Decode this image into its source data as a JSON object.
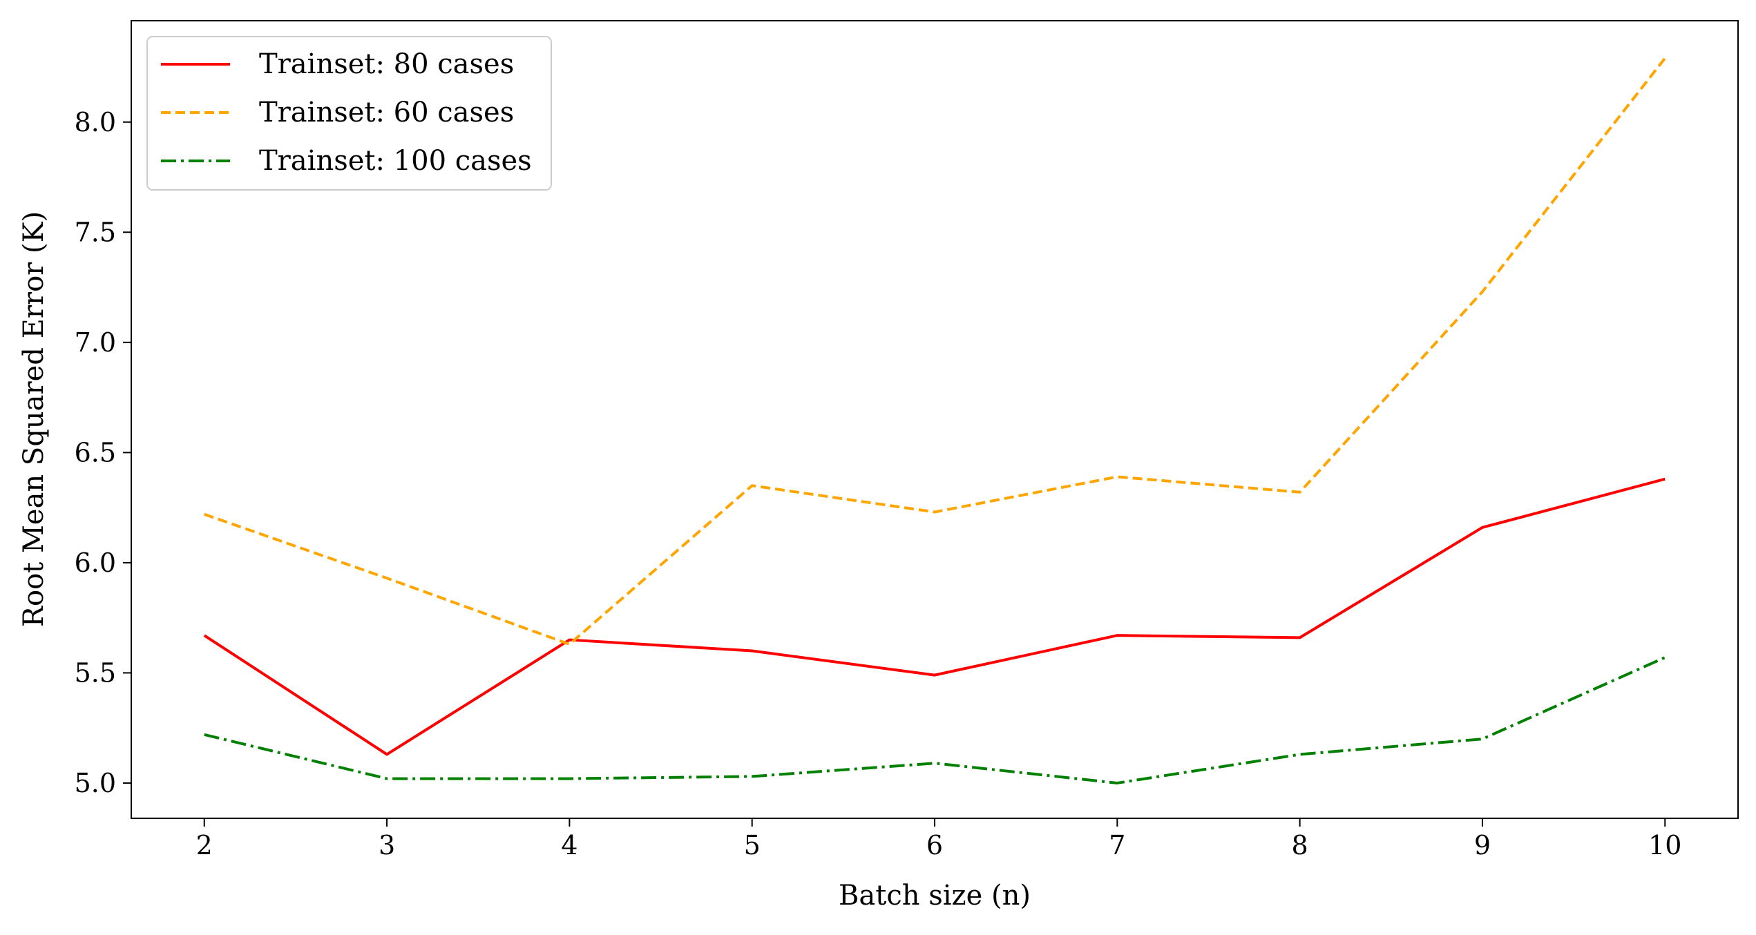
{
  "chart_data": {
    "type": "line",
    "title": "",
    "xlabel": "Batch size (n)",
    "ylabel": "Root Mean Squared Error (K)",
    "x": [
      2,
      3,
      4,
      5,
      6,
      7,
      8,
      9,
      10
    ],
    "xlim": [
      1.6,
      10.4
    ],
    "ylim": [
      4.84,
      8.46
    ],
    "xticks": [
      "2",
      "3",
      "4",
      "5",
      "6",
      "7",
      "8",
      "9",
      "10"
    ],
    "yticks": [
      "5.0",
      "5.5",
      "6.0",
      "6.5",
      "7.0",
      "7.5",
      "8.0"
    ],
    "grid": false,
    "legend_position": "top-left",
    "series": [
      {
        "name": "Trainset: 80 cases",
        "color": "#ff0000",
        "style": "solid",
        "values": [
          5.67,
          5.13,
          5.65,
          5.6,
          5.49,
          5.67,
          5.66,
          6.16,
          6.38
        ]
      },
      {
        "name": "Trainset: 60 cases",
        "color": "#ffa500",
        "style": "dashed",
        "values": [
          6.22,
          5.93,
          5.63,
          6.35,
          6.23,
          6.39,
          6.32,
          7.23,
          8.29
        ]
      },
      {
        "name": "Trainset: 100 cases",
        "color": "#008000",
        "style": "dashdot",
        "values": [
          5.22,
          5.02,
          5.02,
          5.03,
          5.09,
          5.0,
          5.13,
          5.2,
          5.57
        ]
      }
    ]
  }
}
